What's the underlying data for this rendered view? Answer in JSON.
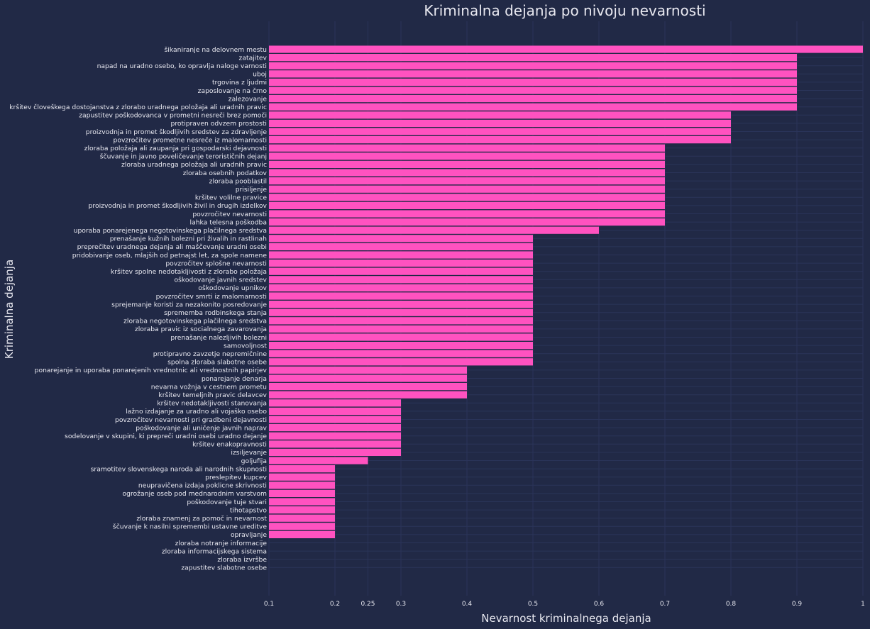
{
  "chart_data": {
    "type": "bar",
    "orientation": "horizontal",
    "title": "Kriminalna dejanja po nivoju nevarnosti",
    "xlabel": "Nevarnost kriminalnega dejanja",
    "ylabel": "Kriminalna dejanja",
    "xlim": [
      0.1,
      1.0
    ],
    "xticks": [
      0.1,
      0.2,
      0.25,
      0.3,
      0.4,
      0.5,
      0.6,
      0.7,
      0.8,
      0.9,
      1.0
    ],
    "xtick_labels": [
      "0.1",
      "0.2",
      "0.25",
      "0.3",
      "0.4",
      "0.5",
      "0.6",
      "0.7",
      "0.8",
      "0.9",
      "1"
    ],
    "grid": true,
    "bar_color": "#ff52c0",
    "background_color": "#212946",
    "grid_color": "#2a3459",
    "text_color": "#e8e8f0",
    "categories": [
      "šikaniranje na delovnem mestu",
      "zatajitev",
      "napad na uradno osebo, ko opravlja naloge varnosti",
      "uboj",
      "trgovina z ljudmi",
      "zaposlovanje na črno",
      "zalezovanje",
      "kršitev človeškega dostojanstva z zlorabo uradnega položaja ali uradnih pravic",
      "zapustitev poškodovanca v prometni nesreči brez pomoči",
      "protipraven odvzem prostosti",
      "proizvodnja in promet škodljivih sredstev za zdravljenje",
      "povzročitev prometne nesreče iz malomarnosti",
      "zloraba položaja ali zaupanja pri gospodarski dejavnosti",
      "ščuvanje in javno poveličevanje terorističnih dejanj",
      "zloraba uradnega položaja ali uradnih pravic",
      "zloraba osebnih podatkov",
      "zloraba pooblastil",
      "prisiljenje",
      "kršitev volilne pravice",
      "proizvodnja in promet škodljivih živil in drugih izdelkov",
      "povzročitev nevarnosti",
      "lahka telesna poškodba",
      "uporaba ponarejenega negotovinskega plačilnega sredstva",
      "prenašanje kužnih bolezni pri živalih in rastlinah",
      "preprečitev uradnega dejanja ali maščevanje uradni osebi",
      "pridobivanje oseb, mlajših od petnajst let, za spole namene",
      "povzročitev splošne nevarnosti",
      "kršitev spolne nedotakljivosti z zlorabo položaja",
      "oškodovanje javnih sredstev",
      "oškodovanje upnikov",
      "povzročitev smrti iz malomarnosti",
      "sprejemanje koristi za nezakonito posredovanje",
      "sprememba rodbinskega stanja",
      "zloraba negotovinskega plačilnega sredstva",
      "zloraba pravic iz socialnega zavarovanja",
      "prenašanje nalezljivih bolezni",
      "samovoljnost",
      "protipravno zavzetje nepremičnine",
      "spolna zloraba slabotne osebe",
      "ponarejanje in uporaba ponarejenih vrednotnic ali vrednostnih papirjev",
      "ponarejanje denarja",
      "nevarna vožnja v cestnem prometu",
      "kršitev temeljnih pravic delavcev",
      "kršitev nedotakljivosti stanovanja",
      "lažno izdajanje za uradno ali vojaško osebo",
      "povzročitev nevarnosti pri gradbeni dejavnosti",
      "poškodovanje ali uničenje javnih naprav",
      "sodelovanje v skupini, ki prepreči uradni osebi uradno dejanje",
      "kršitev enakopravnosti",
      "izsiljevanje",
      "goljufija",
      "sramotitev slovenskega naroda ali narodnih skupnosti",
      "preslepitev kupcev",
      "neupravičena izdaja poklicne skrivnosti",
      "ogrožanje oseb pod mednarodnim varstvom",
      "poškodovanje tuje stvari",
      "tihotapstvo",
      "zloraba znamenj za pomoč in nevarnost",
      "ščuvanje k nasilni spremembi ustavne ureditve",
      "opravljanje",
      "zloraba notranje informacije",
      "zloraba informacijskega sistema",
      "zloraba izvršbe",
      "zapustitev slabotne osebe"
    ],
    "values": [
      1.0,
      0.9,
      0.9,
      0.9,
      0.9,
      0.9,
      0.9,
      0.9,
      0.8,
      0.8,
      0.8,
      0.8,
      0.7,
      0.7,
      0.7,
      0.7,
      0.7,
      0.7,
      0.7,
      0.7,
      0.7,
      0.7,
      0.6,
      0.5,
      0.5,
      0.5,
      0.5,
      0.5,
      0.5,
      0.5,
      0.5,
      0.5,
      0.5,
      0.5,
      0.5,
      0.5,
      0.5,
      0.5,
      0.5,
      0.4,
      0.4,
      0.4,
      0.4,
      0.3,
      0.3,
      0.3,
      0.3,
      0.3,
      0.3,
      0.3,
      0.25,
      0.2,
      0.2,
      0.2,
      0.2,
      0.2,
      0.2,
      0.2,
      0.2,
      0.2,
      0.1,
      0.1,
      0.1,
      0.1
    ]
  }
}
